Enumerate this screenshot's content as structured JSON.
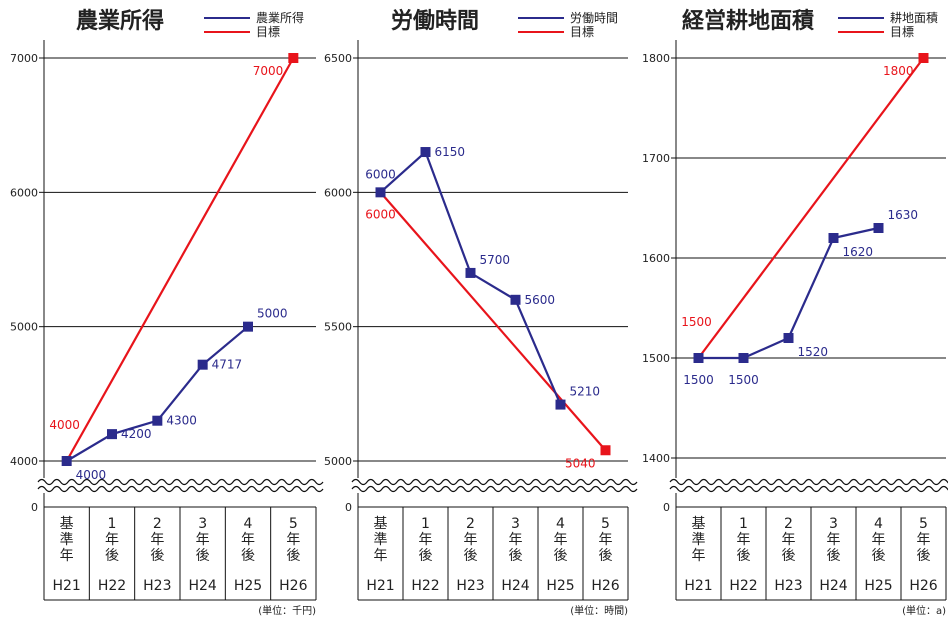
{
  "colors": {
    "actual": "#2b2b8c",
    "target": "#e8141b",
    "axis": "#111111"
  },
  "chart_data": [
    {
      "type": "line",
      "title": "農業所得",
      "unit_note": "(単位：千円)",
      "categories": [
        "基準年",
        "1年後",
        "2年後",
        "3年後",
        "4年後",
        "5年後"
      ],
      "eras": [
        "H21",
        "H22",
        "H23",
        "H24",
        "H25",
        "H26"
      ],
      "yticks": [
        0,
        4000,
        5000,
        6000,
        7000
      ],
      "ylim": [
        4000,
        7000
      ],
      "y_break": true,
      "grid": true,
      "legend_position": "top-right",
      "series": [
        {
          "name": "農業所得",
          "role": "actual",
          "values": [
            4000,
            4200,
            4300,
            4717,
            5000,
            null
          ],
          "labels": [
            "4000",
            "4200",
            "4300",
            "4717",
            "5000",
            null
          ],
          "label_side": [
            "below-right",
            "right",
            "right",
            "right",
            "above-right",
            null
          ]
        },
        {
          "name": "目標",
          "role": "target",
          "values": [
            4000,
            null,
            null,
            null,
            null,
            7000
          ],
          "labels": [
            "4000",
            null,
            null,
            null,
            null,
            "7000"
          ],
          "label_side": [
            "above-left",
            null,
            null,
            null,
            null,
            "left"
          ]
        }
      ]
    },
    {
      "type": "line",
      "title": "労働時間",
      "unit_note": "(単位：時間)",
      "categories": [
        "基準年",
        "1年後",
        "2年後",
        "3年後",
        "4年後",
        "5年後"
      ],
      "eras": [
        "H21",
        "H22",
        "H23",
        "H24",
        "H25",
        "H26"
      ],
      "yticks": [
        0,
        5000,
        5500,
        6000,
        6500
      ],
      "ylim": [
        5000,
        6500
      ],
      "y_break": true,
      "grid": true,
      "legend_position": "top-right",
      "series": [
        {
          "name": "労働時間",
          "role": "actual",
          "values": [
            6000,
            6150,
            5700,
            5600,
            5210,
            null
          ],
          "labels": [
            "6000",
            "6150",
            "5700",
            "5600",
            "5210",
            null
          ],
          "label_side": [
            "above",
            "right",
            "above-right",
            "right",
            "above-right",
            null
          ]
        },
        {
          "name": "目標",
          "role": "target",
          "values": [
            6000,
            null,
            null,
            null,
            null,
            5040
          ],
          "labels": [
            "6000",
            null,
            null,
            null,
            null,
            "5040"
          ],
          "label_side": [
            "below",
            null,
            null,
            null,
            null,
            "left"
          ]
        }
      ]
    },
    {
      "type": "line",
      "title": "経営耕地面積",
      "unit_note": "(単位：a)",
      "categories": [
        "基準年",
        "1年後",
        "2年後",
        "3年後",
        "4年後",
        "5年後"
      ],
      "eras": [
        "H21",
        "H22",
        "H23",
        "H24",
        "H25",
        "H26"
      ],
      "yticks": [
        0,
        1400,
        1500,
        1600,
        1700,
        1800
      ],
      "ylim": [
        1400,
        1800
      ],
      "y_break": true,
      "grid": true,
      "legend_position": "top-right",
      "series": [
        {
          "name": "耕地面積",
          "role": "actual",
          "values": [
            1500,
            1500,
            1520,
            1620,
            1630,
            null
          ],
          "labels": [
            "1500",
            "1500",
            "1520",
            "1620",
            "1630",
            null
          ],
          "label_side": [
            "below",
            "below",
            "below-right",
            "below-right",
            "above-right",
            null
          ]
        },
        {
          "name": "目標",
          "role": "target",
          "values": [
            1500,
            null,
            null,
            null,
            null,
            1800
          ],
          "labels": [
            "1500",
            null,
            null,
            null,
            null,
            "1800"
          ],
          "label_side": [
            "above-left",
            null,
            null,
            null,
            null,
            "left"
          ]
        }
      ]
    }
  ]
}
